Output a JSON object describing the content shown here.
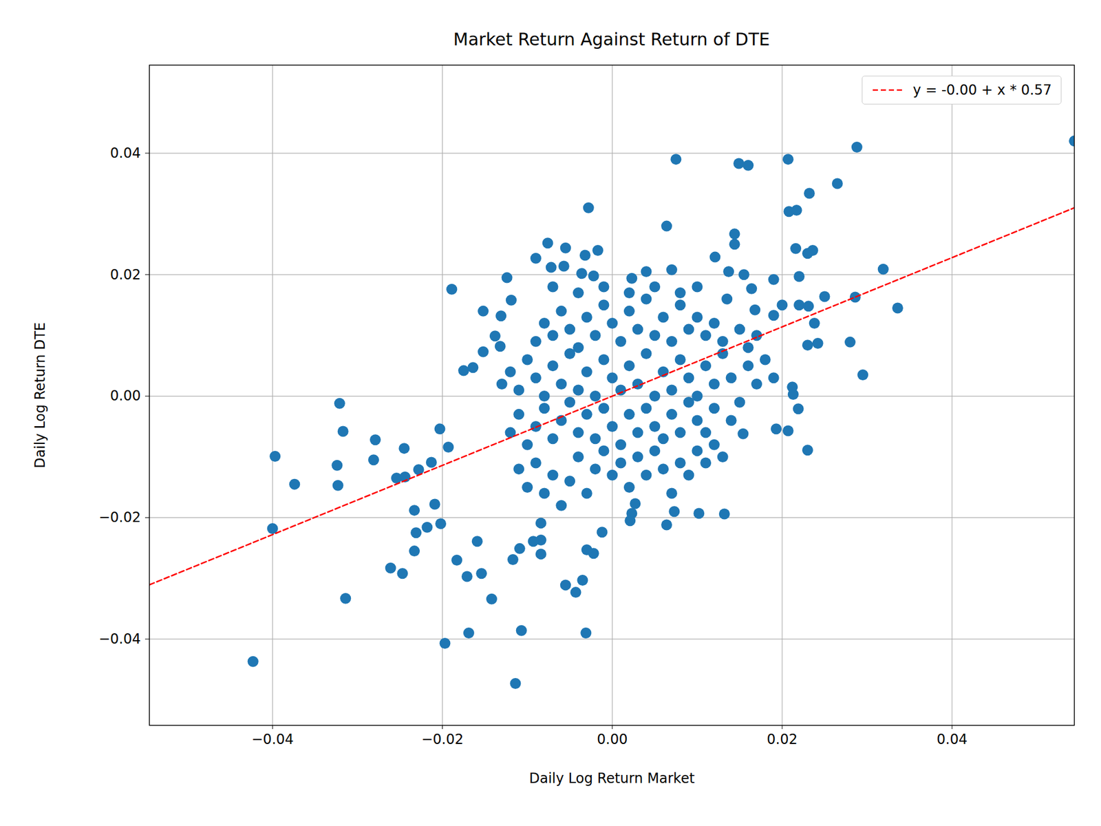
{
  "chart_data": {
    "type": "scatter",
    "title": "Market Return Against Return of DTE",
    "x_label": "Daily Log Return Market",
    "y_label": "Daily Log Return DTE",
    "color": "#1f77b4",
    "marker": "circle",
    "grid": true,
    "legend": "upper right",
    "xlim": [
      -0.0545,
      0.0544
    ],
    "ylim": [
      -0.0542,
      0.0545
    ],
    "xticks": [
      {
        "value": -0.04,
        "label": "−0.04"
      },
      {
        "value": -0.02,
        "label": "−0.02"
      },
      {
        "value": 0,
        "label": "0.00"
      },
      0.02,
      0.04
    ],
    "yticks": [
      {
        "value": -0.04,
        "label": "−0.04"
      },
      {
        "value": -0.02,
        "label": "−0.02"
      },
      {
        "value": 0,
        "label": "0.00"
      },
      0.02,
      0.04
    ],
    "regression": {
      "label": "y = -0.00 + x * 0.57",
      "intercept": 0,
      "slope": 0.57,
      "color": "red",
      "line_style": "dashed"
    },
    "x": [
      0.0544,
      0.0288,
      0.0075,
      0.0149,
      0.016,
      0.0207,
      0.0265,
      0.0232,
      0.0208,
      0.0217,
      -0.0028,
      0.0064,
      0.0144,
      0.0144,
      0.0319,
      0.0336,
      0.025,
      0.0286,
      0.028,
      0.0295,
      0.023,
      0.0216,
      0.0236,
      0.023,
      0.022,
      0.02,
      0.022,
      0.0231,
      0.0238,
      0.023,
      0.0242,
      0.0212,
      0.0213,
      0.0219,
      0.0193,
      0.0207,
      0.0154,
      0.0132,
      0.0102,
      0.0073,
      0.0064,
      0.0027,
      0.0023,
      0.0021,
      -0.0012,
      -0.0022,
      -0.003,
      -0.0031,
      -0.0035,
      -0.0043,
      -0.0055,
      -0.0107,
      -0.0114,
      -0.0197,
      -0.0169,
      -0.0142,
      -0.0154,
      -0.0171,
      -0.0183,
      -0.0117,
      -0.0109,
      -0.0084,
      -0.0084,
      -0.0093,
      -0.0084,
      -0.0159,
      -0.0423,
      -0.0314,
      -0.0261,
      -0.0247,
      -0.0233,
      -0.04,
      -0.0397,
      -0.0374,
      -0.0324,
      -0.0323,
      -0.0321,
      -0.0317,
      -0.0279,
      -0.0281,
      -0.0245,
      -0.0254,
      -0.0244,
      -0.0228,
      -0.0213,
      -0.0231,
      -0.0233,
      -0.0218,
      -0.0202,
      -0.0209,
      -0.0203,
      -0.0193,
      -0.0189,
      -0.0152,
      -0.0131,
      -0.0124,
      -0.0119,
      -0.0175,
      -0.0164,
      -0.0152,
      -0.0138,
      -0.0132,
      -0.0076,
      -0.009,
      -0.0055,
      -0.0057,
      -0.0072,
      -0.0017,
      -0.0032,
      -0.0036,
      -0.0022,
      0.004,
      0.007,
      0.0023,
      0.0137,
      0.0155,
      0.019,
      0.0121,
      0.0164,
      0.0135,
      0.0168,
      0.019,
      -0.011,
      -0.01,
      -0.009,
      -0.008,
      -0.007,
      -0.006,
      -0.005,
      -0.004,
      -0.003,
      -0.002,
      -0.001,
      0,
      0.001,
      0.002,
      0.003,
      0.004,
      0.005,
      0.006,
      0.007,
      0.008,
      0.009,
      0.01,
      0.011,
      0.012,
      0.013,
      -0.012,
      -0.011,
      -0.01,
      -0.009,
      -0.008,
      -0.007,
      -0.006,
      -0.005,
      -0.004,
      -0.003,
      -0.002,
      -0.001,
      0,
      0.001,
      0.002,
      0.003,
      0.004,
      0.005,
      0.006,
      0.007,
      0.008,
      0.009,
      0.01,
      0.011,
      0.012,
      0.014,
      0.015,
      -0.013,
      -0.012,
      -0.011,
      -0.01,
      -0.009,
      -0.008,
      -0.007,
      -0.006,
      -0.005,
      -0.004,
      -0.003,
      -0.002,
      -0.001,
      0,
      0.001,
      0.002,
      0.003,
      0.004,
      0.005,
      0.006,
      0.007,
      0.008,
      0.009,
      0.01,
      0.011,
      0.012,
      0.013,
      0.014,
      0.016,
      0.017,
      0.018,
      0.019,
      -0.009,
      -0.008,
      -0.007,
      -0.006,
      -0.005,
      -0.004,
      -0.003,
      -0.002,
      -0.001,
      0,
      0.001,
      0.002,
      0.003,
      0.004,
      0.005,
      0.006,
      0.007,
      0.008,
      0.009,
      0.01,
      0.011,
      0.012,
      0.013,
      0.015,
      0.016,
      0.017,
      -0.007,
      -0.004,
      -0.001,
      0.002,
      0.005,
      0.008,
      0.01
    ],
    "values": [
      0.042,
      0.041,
      0.039,
      0.0383,
      0.038,
      0.039,
      0.035,
      0.0334,
      0.0304,
      0.0306,
      0.031,
      0.028,
      0.0267,
      0.025,
      0.0209,
      0.0145,
      0.0164,
      0.0163,
      0.0089,
      0.0035,
      -0.0089,
      0.0243,
      0.024,
      0.0235,
      0.0197,
      0.015,
      0.015,
      0.0148,
      0.012,
      0.0084,
      0.0087,
      0.0015,
      0.0003,
      -0.0021,
      -0.0054,
      -0.0057,
      -0.0062,
      -0.0194,
      -0.0193,
      -0.019,
      -0.0212,
      -0.0177,
      -0.0193,
      -0.0205,
      -0.0224,
      -0.0259,
      -0.0253,
      -0.039,
      -0.0303,
      -0.0323,
      -0.0311,
      -0.0386,
      -0.0473,
      -0.0407,
      -0.039,
      -0.0334,
      -0.0292,
      -0.0297,
      -0.027,
      -0.0269,
      -0.0251,
      -0.026,
      -0.0237,
      -0.0239,
      -0.0209,
      -0.0239,
      -0.0437,
      -0.0333,
      -0.0283,
      -0.0292,
      -0.0255,
      -0.0218,
      -0.0099,
      -0.0145,
      -0.0114,
      -0.0147,
      -0.0012,
      -0.0058,
      -0.0072,
      -0.0105,
      -0.0086,
      -0.0135,
      -0.0133,
      -0.0121,
      -0.0109,
      -0.0225,
      -0.0188,
      -0.0216,
      -0.021,
      -0.0178,
      -0.0054,
      -0.0084,
      0.0176,
      0.014,
      0.0132,
      0.0195,
      0.0158,
      0.0042,
      0.0047,
      0.0073,
      0.0099,
      0.0082,
      0.0252,
      0.0227,
      0.0244,
      0.0214,
      0.0212,
      0.024,
      0.0232,
      0.0202,
      0.0198,
      0.0205,
      0.0208,
      0.0194,
      0.0205,
      0.02,
      0.0192,
      0.0229,
      0.0177,
      0.016,
      0.0142,
      0.0133,
      -0.012,
      -0.015,
      -0.011,
      -0.016,
      -0.013,
      -0.018,
      -0.014,
      -0.01,
      -0.016,
      -0.012,
      -0.009,
      -0.013,
      -0.011,
      -0.015,
      -0.01,
      -0.013,
      -0.009,
      -0.012,
      -0.016,
      -0.011,
      -0.013,
      -0.009,
      -0.011,
      -0.008,
      -0.01,
      -0.006,
      -0.003,
      -0.008,
      -0.005,
      -0.002,
      -0.007,
      -0.004,
      -0.001,
      -0.006,
      -0.003,
      -0.007,
      -0.002,
      -0.005,
      -0.008,
      -0.003,
      -0.006,
      -0.002,
      -0.005,
      -0.007,
      -0.003,
      -0.006,
      -0.001,
      -0.004,
      -0.006,
      -0.002,
      -0.004,
      -0.001,
      0.002,
      0.004,
      0.001,
      0.006,
      0.003,
      0,
      0.005,
      0.002,
      0.007,
      0.001,
      0.004,
      0,
      0.006,
      0.003,
      0.001,
      0.005,
      0.002,
      0.007,
      0,
      0.004,
      0.001,
      0.006,
      0.003,
      0,
      0.005,
      0.002,
      0.007,
      0.003,
      0.005,
      0.002,
      0.006,
      0.003,
      0.009,
      0.012,
      0.01,
      0.014,
      0.011,
      0.008,
      0.013,
      0.01,
      0.015,
      0.012,
      0.009,
      0.014,
      0.011,
      0.016,
      0.01,
      0.013,
      0.009,
      0.015,
      0.011,
      0.013,
      0.01,
      0.012,
      0.009,
      0.011,
      0.008,
      0.01,
      0.018,
      0.017,
      0.018,
      0.017,
      0.018,
      0.017,
      0.018
    ]
  }
}
